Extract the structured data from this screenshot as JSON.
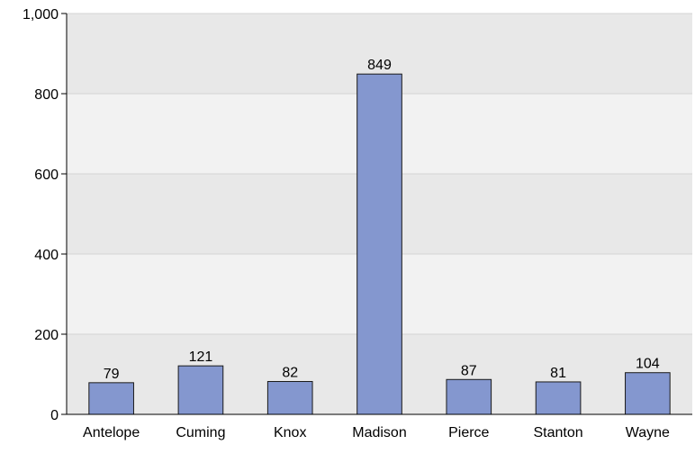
{
  "chart_data": {
    "type": "bar",
    "title": "",
    "xlabel": "",
    "ylabel": "",
    "categories": [
      "Antelope",
      "Cuming",
      "Knox",
      "Madison",
      "Pierce",
      "Stanton",
      "Wayne"
    ],
    "values": [
      79,
      121,
      82,
      849,
      87,
      81,
      104
    ],
    "ylim": [
      0,
      1000
    ],
    "yticks": [
      0,
      200,
      400,
      600,
      800,
      1000
    ],
    "ytick_labels": [
      "0",
      "200",
      "400",
      "600",
      "800",
      "1,000"
    ],
    "grid": true,
    "bar_color": "#8497cf",
    "bar_edge_color": "#1a1a1a",
    "band_colors": [
      "#e8e8e8",
      "#f2f2f2"
    ]
  }
}
